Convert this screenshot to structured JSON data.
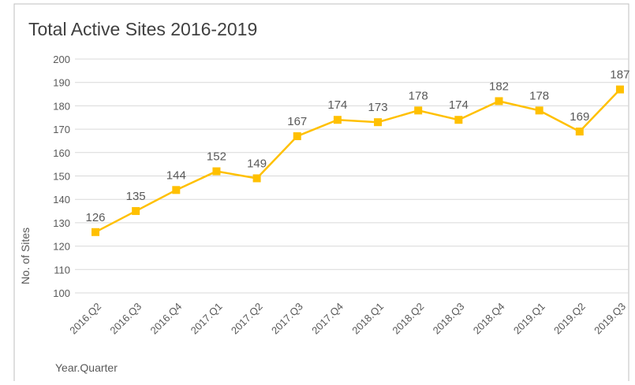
{
  "chart_data": {
    "type": "line",
    "title": "Total Active Sites 2016-2019",
    "x_label": "Year.Quarter",
    "y_label": "No. of Sites",
    "categories": [
      "2016.Q2",
      "2016.Q3",
      "2016.Q4",
      "2017.Q1",
      "2017.Q2",
      "2017.Q3",
      "2017.Q4",
      "2018.Q1",
      "2018.Q2",
      "2018.Q3",
      "2018.Q4",
      "2019.Q1",
      "2019.Q2",
      "2019.Q3"
    ],
    "series": [
      {
        "name": "Total Active Sites",
        "color": "#FFC000",
        "values": [
          126,
          135,
          144,
          152,
          149,
          167,
          174,
          173,
          178,
          174,
          182,
          178,
          169,
          187
        ]
      }
    ],
    "ylim": [
      100,
      200
    ],
    "yticks": [
      100,
      110,
      120,
      130,
      140,
      150,
      160,
      170,
      180,
      190,
      200
    ],
    "grid": true
  }
}
